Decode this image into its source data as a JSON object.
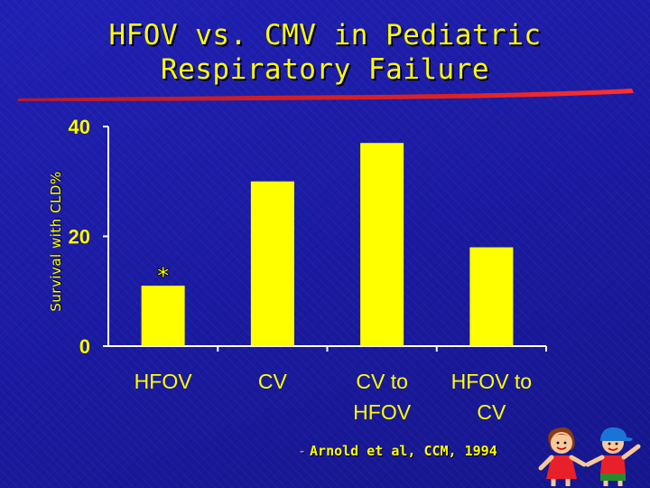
{
  "slide": {
    "title_line1": "HFOV vs. CMV in Pediatric",
    "title_line2": "Respiratory Failure",
    "citation_dash": "-",
    "citation": "Arnold et al, CCM, 1994"
  },
  "colors": {
    "background": "#1c1ca8",
    "text": "#ffff00",
    "bar": "#ffff00",
    "axis": "#ffffff",
    "rule": "#d01818"
  },
  "chart_data": {
    "type": "bar",
    "categories": [
      "HFOV",
      "CV",
      "CV to HFOV",
      "HFOV to CV"
    ],
    "category_lines": [
      [
        "HFOV"
      ],
      [
        "CV"
      ],
      [
        "CV to",
        "HFOV"
      ],
      [
        "HFOV to",
        "CV"
      ]
    ],
    "values": [
      11,
      30,
      37,
      18
    ],
    "ylabel": "Survival with CLD%",
    "yticks": [
      0,
      20,
      40
    ],
    "ylim": [
      0,
      40
    ],
    "annotations": [
      {
        "category": "HFOV",
        "text": "*"
      }
    ],
    "grid": false,
    "legend": "none"
  }
}
